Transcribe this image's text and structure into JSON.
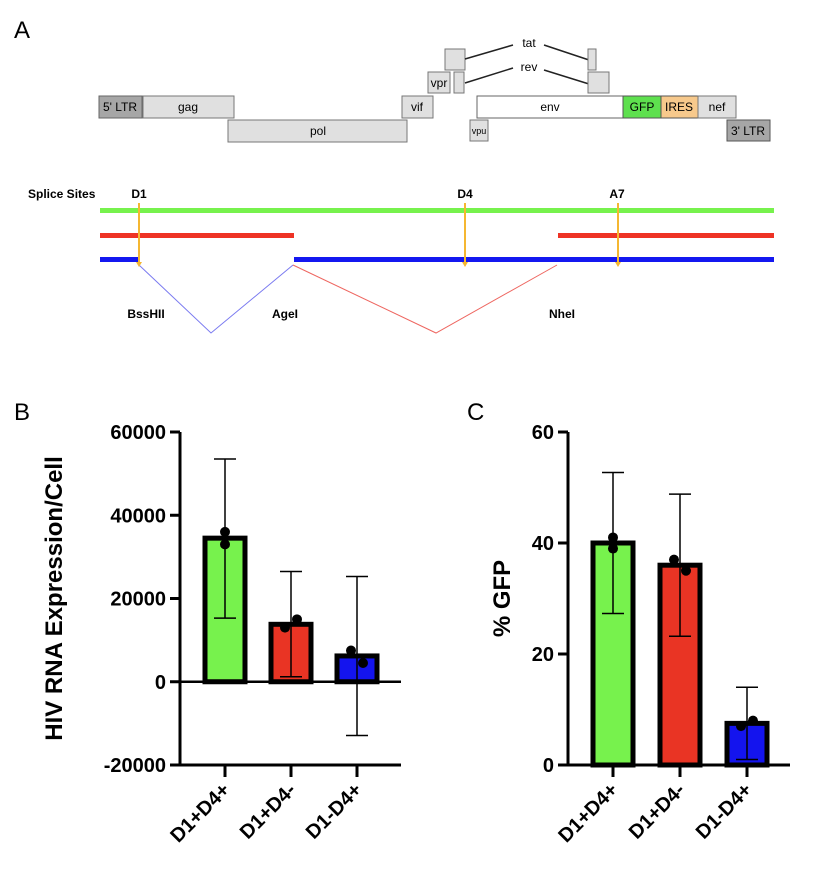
{
  "panel_a": {
    "letter": "A",
    "genes": {
      "ltr5": "5' LTR",
      "gag": "gag",
      "pol": "pol",
      "vif": "vif",
      "vpr": "vpr",
      "tat": "tat",
      "rev": "rev",
      "vpu": "vpu",
      "env": "env",
      "gfp": "GFP",
      "ires": "IRES",
      "nef": "nef",
      "ltr3": "3' LTR"
    },
    "splice": {
      "title": "Splice Sites",
      "sites": [
        "D1",
        "D4",
        "A7"
      ],
      "enzymes": [
        "BssHII",
        "AgeI",
        "NheI"
      ]
    },
    "colors": {
      "ltr": "#a6a6a6",
      "gene": "#e0e0e0",
      "env": "#ffffff",
      "gfp": "#5ee04e",
      "ires": "#f7c98c",
      "green_line": "#77f24d",
      "red_line": "#ee3325",
      "blue_line": "#1418f0",
      "site_arrow": "#f5b731"
    }
  },
  "chart_data": [
    {
      "panel": "B",
      "type": "bar",
      "title": "",
      "xlabel": "",
      "ylabel": "HIV RNA Expression/Cell",
      "categories": [
        "D1+D4+",
        "D1+D4-",
        "D1-D4+"
      ],
      "values": [
        34500,
        13800,
        6200
      ],
      "error_upper": [
        53500,
        26500,
        25300
      ],
      "error_lower": [
        15300,
        1200,
        -12900
      ],
      "points": [
        [
          36000,
          33000
        ],
        [
          13000,
          15000
        ],
        [
          7500,
          4500
        ]
      ],
      "colors": [
        "#77f24d",
        "#e93424",
        "#1414ee"
      ],
      "ylim": [
        -20000,
        60000
      ],
      "yticks": [
        -20000,
        0,
        20000,
        40000,
        60000
      ],
      "ytick_labels": [
        "-20000",
        "0",
        "20000",
        "40000",
        "60000"
      ],
      "grid": false
    },
    {
      "panel": "C",
      "type": "bar",
      "title": "",
      "xlabel": "",
      "ylabel": "% GFP",
      "categories": [
        "D1+D4+",
        "D1+D4-",
        "D1-D4+"
      ],
      "values": [
        40,
        36,
        7.5
      ],
      "error_upper": [
        52.7,
        48.8,
        14
      ],
      "error_lower": [
        27.3,
        23.2,
        1
      ],
      "points": [
        [
          41,
          39
        ],
        [
          37,
          35
        ],
        [
          7,
          8
        ]
      ],
      "colors": [
        "#77f24d",
        "#e93424",
        "#1414ee"
      ],
      "ylim": [
        0,
        60
      ],
      "yticks": [
        0,
        20,
        40,
        60
      ],
      "ytick_labels": [
        "0",
        "20",
        "40",
        "60"
      ],
      "grid": false
    }
  ]
}
